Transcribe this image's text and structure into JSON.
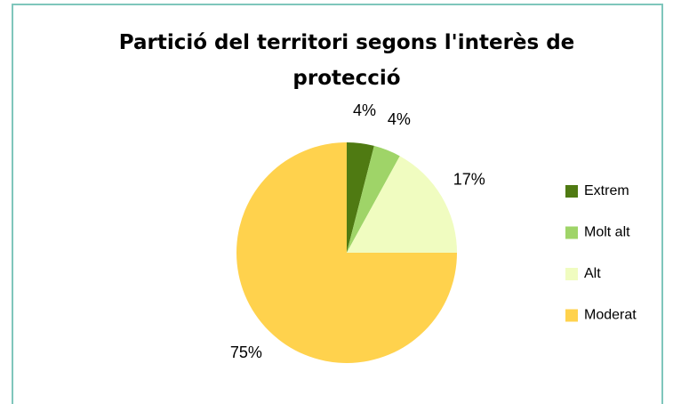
{
  "chart_data": {
    "type": "pie",
    "title": "Partició del territori segons l'interès de protecció",
    "categories": [
      "Extrem",
      "Molt alt",
      "Alt",
      "Moderat"
    ],
    "values": [
      4,
      4,
      17,
      75
    ],
    "value_labels": [
      "4%",
      "4%",
      "17%",
      "75%"
    ],
    "colors": [
      "#4f7a12",
      "#9fd468",
      "#f0fcc0",
      "#ffd24d"
    ],
    "legend": "right"
  }
}
